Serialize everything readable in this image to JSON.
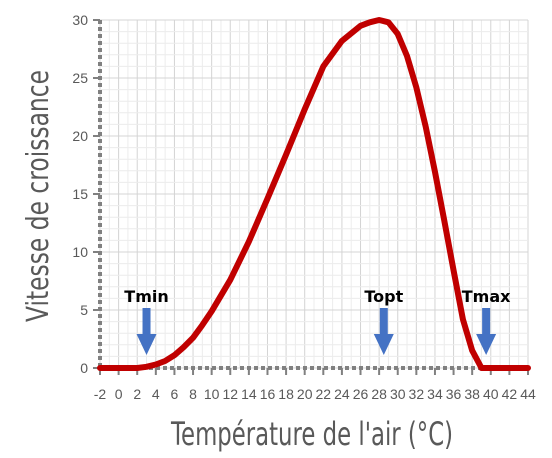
{
  "chart_data": {
    "type": "line",
    "title": "",
    "xlabel": "Température de l'air (°C)",
    "ylabel": "Vitesse de croissance",
    "xlim": [
      -2,
      44
    ],
    "ylim": [
      0,
      30
    ],
    "x_ticks": [
      -2,
      0,
      2,
      4,
      6,
      8,
      10,
      12,
      14,
      16,
      18,
      20,
      22,
      24,
      26,
      28,
      30,
      32,
      34,
      36,
      38,
      40,
      42,
      44
    ],
    "y_ticks": [
      0,
      5,
      10,
      15,
      20,
      25,
      30
    ],
    "grid": true,
    "series": [
      {
        "x": [
          -2,
          0,
          2,
          3,
          4,
          5,
          6,
          7,
          8,
          9,
          10,
          12,
          14,
          16,
          18,
          20,
          22,
          24,
          26,
          27,
          28,
          29,
          30,
          31,
          32,
          33,
          34,
          35,
          36,
          37,
          38,
          39,
          39.5,
          40,
          42,
          44
        ],
        "y": [
          0,
          0,
          0,
          0.1,
          0.3,
          0.6,
          1.1,
          1.8,
          2.6,
          3.7,
          4.9,
          7.6,
          10.9,
          14.6,
          18.4,
          22.3,
          26.0,
          28.2,
          29.5,
          29.8,
          30.0,
          29.8,
          28.8,
          26.9,
          24.2,
          20.8,
          16.9,
          12.7,
          8.4,
          4.2,
          1.5,
          0,
          0,
          0,
          0,
          0
        ],
        "color": "#c00000"
      }
    ],
    "annotations": [
      {
        "label": "Tmin",
        "x": 3
      },
      {
        "label": "Topt",
        "x": 28.5
      },
      {
        "label": "Tmax",
        "x": 39.5
      }
    ],
    "arrow_color": "#4472c4"
  }
}
